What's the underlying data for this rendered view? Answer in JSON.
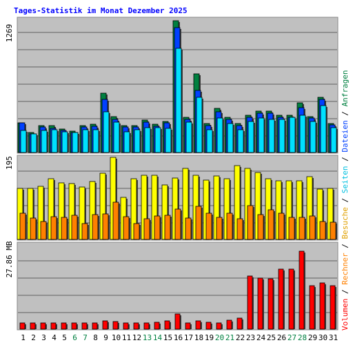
{
  "chart_data": {
    "type": "bar",
    "title": "Tages-Statistik im Monat Dezember 2025",
    "categories": [
      "1",
      "2",
      "3",
      "4",
      "5",
      "6",
      "7",
      "8",
      "9",
      "10",
      "11",
      "12",
      "13",
      "14",
      "15",
      "16",
      "17",
      "18",
      "19",
      "20",
      "21",
      "22",
      "23",
      "24",
      "25",
      "26",
      "27",
      "28",
      "29",
      "30",
      "31"
    ],
    "weekend_days": [
      "6",
      "7",
      "13",
      "14",
      "20",
      "21",
      "27",
      "28"
    ],
    "colors": {
      "background": "#c0c0c0",
      "frame": "#888888",
      "grid": "#606060",
      "anfragen": "#008040",
      "dateien": "#0040ff",
      "seiten": "#00e0ff",
      "besuche": "#ffff00",
      "rechner": "#ff8000",
      "volumen": "#ff0000",
      "title": "#0000ff",
      "weekend_label": "#008040",
      "weekday_label": "#000000"
    },
    "panels": [
      {
        "id": "top",
        "ymax_label": "1269",
        "ylim": [
          0,
          1269
        ],
        "series": [
          {
            "name": "Anfragen",
            "values": [
              283,
              195,
              262,
              262,
              228,
              206,
              262,
              270,
              572,
              348,
              262,
              262,
              310,
              270,
              300,
              1269,
              340,
              757,
              276,
              424,
              340,
              276,
              359,
              400,
              400,
              359,
              359,
              478,
              348,
              530,
              280
            ]
          },
          {
            "name": "Dateien",
            "values": [
              283,
              180,
              249,
              235,
              213,
              190,
              249,
              250,
              510,
              320,
              249,
              249,
              290,
              255,
              285,
              1200,
              320,
              600,
              260,
              390,
              320,
              260,
              340,
              380,
              380,
              340,
              340,
              430,
              330,
              510,
              265
            ]
          },
          {
            "name": "Seiten",
            "values": [
              210,
              180,
              210,
              220,
              200,
              190,
              220,
              220,
              390,
              290,
              200,
              220,
              240,
              240,
              230,
              1000,
              290,
              530,
              220,
              330,
              280,
              220,
              300,
              330,
              320,
              320,
              340,
              360,
              300,
              450,
              240
            ]
          }
        ]
      },
      {
        "id": "middle",
        "ymax_label": "195",
        "ylim": [
          0,
          195
        ],
        "series": [
          {
            "name": "Besuche",
            "values": [
              122,
              122,
              126,
              144,
              135,
              133,
              125,
              138,
              157,
              195,
              100,
              144,
              152,
              152,
              130,
              146,
              168,
              153,
              141,
              151,
              145,
              176,
              168,
              159,
              145,
              140,
              139,
              139,
              149,
              119,
              122
            ]
          },
          {
            "name": "Rechner",
            "values": [
              63,
              51,
              42,
              54,
              52,
              57,
              37,
              59,
              61,
              88,
              54,
              37,
              49,
              55,
              57,
              72,
              50,
              79,
              62,
              52,
              62,
              49,
              80,
              59,
              70,
              63,
              52,
              53,
              56,
              42,
              41
            ]
          }
        ]
      },
      {
        "id": "bottom",
        "ymax_label": "27.86 MB",
        "ylim": [
          0,
          27.86
        ],
        "series": [
          {
            "name": "Volumen",
            "values": [
              2.0,
              2.0,
              2.0,
              2.1,
              2.0,
              2.0,
              2.0,
              2.0,
              2.8,
              2.5,
              2.0,
              2.0,
              2.1,
              2.4,
              2.7,
              5.0,
              2.0,
              2.8,
              2.2,
              2.1,
              3.1,
              3.7,
              17.8,
              17.0,
              16.9,
              20.0,
              20.0,
              26.0,
              14.4,
              15.5,
              14.6
            ]
          }
        ]
      }
    ],
    "legend": [
      {
        "label": "Volumen",
        "color": "#ff0000"
      },
      {
        "label": "Rechner",
        "color": "#ff8000"
      },
      {
        "label": "Besuche",
        "color": "#ffff00"
      },
      {
        "label": "Seiten",
        "color": "#00e0ff"
      },
      {
        "label": "Dateien",
        "color": "#0040ff"
      },
      {
        "label": "Anfragen",
        "color": "#008040"
      }
    ],
    "legend_separator": " / ",
    "grid": true,
    "legend_placement": "right-vertical"
  }
}
